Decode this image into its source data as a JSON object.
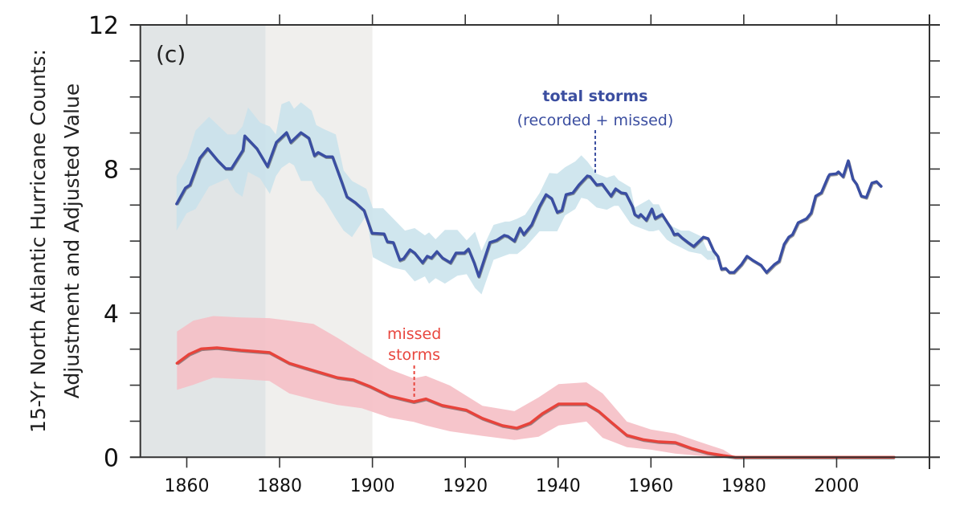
{
  "chart_data": {
    "type": "line",
    "panel_label": "(c)",
    "title": "",
    "xlabel": "",
    "ylabel_lines": [
      "15-Yr North Atlantic Hurricane Counts:",
      "Adjustment and Adjusted Value"
    ],
    "xlim": [
      1850,
      2020
    ],
    "ylim": [
      0,
      12
    ],
    "xticks": [
      1860,
      1880,
      1900,
      1920,
      1940,
      1960,
      1980,
      2000
    ],
    "xticks_minor": [
      2020
    ],
    "yticks": [
      0,
      4,
      8,
      12
    ],
    "yticks_minor": [
      1,
      2,
      3,
      5,
      6,
      7,
      9,
      10,
      11
    ],
    "grid": false,
    "shaded_periods": [
      {
        "name": "early-period",
        "x": [
          1850,
          1877
        ],
        "color": "#e1e5e6"
      },
      {
        "name": "late-period",
        "x": [
          1877,
          1900
        ],
        "color": "#f0efed"
      }
    ],
    "colors": {
      "total_line": "#3a4ea2",
      "total_band": "#c8e2eb",
      "missed_line": "#e8433b",
      "missed_band": "#f5bfc5",
      "axis": "#333333"
    },
    "annotations": [
      {
        "name": "total-storms-label",
        "lines": [
          "total storms",
          "(recorded + missed)"
        ],
        "x": 1948,
        "y": 7.8,
        "color": "#3b4ea0"
      },
      {
        "name": "missed-storms-label",
        "lines": [
          "missed",
          "storms"
        ],
        "x": 1909,
        "y": 1.55,
        "color": "#e8463e"
      }
    ],
    "series": [
      {
        "name": "total storms (recorded + missed)",
        "x": [
          1857.8,
          1859.7,
          1860.7,
          1862.8,
          1864.5,
          1866.7,
          1868.4,
          1869.6,
          1872.1,
          1872.5,
          1875.1,
          1877.4,
          1879.3,
          1881.5,
          1882.4,
          1884.6,
          1886.3,
          1887.5,
          1888.3,
          1890,
          1891.4,
          1893.4,
          1894.5,
          1896.3,
          1898.2,
          1899.9,
          1902.5,
          1903.2,
          1904.5,
          1905.9,
          1906.7,
          1908.1,
          1909.1,
          1910.8,
          1911.8,
          1912.7,
          1913.9,
          1915.1,
          1916.8,
          1918,
          1919.8,
          1920.7,
          1921.9,
          1922.9,
          1925.3,
          1926.7,
          1928.4,
          1929.2,
          1930.6,
          1931.8,
          1932.6,
          1934.3,
          1936,
          1937.4,
          1938.6,
          1939.8,
          1940.8,
          1941.7,
          1943.2,
          1944.5,
          1946.3,
          1946.9,
          1948.3,
          1949.5,
          1951.4,
          1952.4,
          1953.6,
          1954.6,
          1956,
          1956.5,
          1957.3,
          1957.8,
          1959,
          1960.2,
          1960.9,
          1962.4,
          1964.3,
          1965,
          1965.8,
          1966.7,
          1968,
          1969.2,
          1971.3,
          1972.3,
          1973.5,
          1974.4,
          1975.2,
          1976.1,
          1976.9,
          1977.9,
          1979.5,
          1980.7,
          1981.9,
          1983.7,
          1984.9,
          1986.6,
          1987.6,
          1988.7,
          1989.7,
          1990.5,
          1991.7,
          1993.5,
          1994.5,
          1995.5,
          1996.7,
          1998.2,
          1998.5,
          1999.9,
          2000.4,
          2001.4,
          2002.5,
          2003.5,
          2004.3,
          2005.3,
          2006.4,
          2007.6,
          2008.6,
          2009.6
        ],
        "y": [
          7.03,
          7.47,
          7.56,
          8.3,
          8.57,
          8.23,
          8.01,
          8.01,
          8.52,
          8.92,
          8.57,
          8.07,
          8.74,
          9.01,
          8.74,
          9.01,
          8.86,
          8.37,
          8.46,
          8.34,
          8.34,
          7.63,
          7.23,
          7.07,
          6.85,
          6.22,
          6.2,
          5.98,
          5.96,
          5.47,
          5.51,
          5.76,
          5.67,
          5.4,
          5.58,
          5.53,
          5.71,
          5.53,
          5.4,
          5.67,
          5.67,
          5.78,
          5.4,
          5.02,
          5.96,
          6.02,
          6.16,
          6.13,
          6.0,
          6.36,
          6.18,
          6.45,
          6.96,
          7.29,
          7.18,
          6.8,
          6.85,
          7.29,
          7.34,
          7.56,
          7.81,
          7.79,
          7.56,
          7.58,
          7.25,
          7.45,
          7.34,
          7.32,
          6.96,
          6.74,
          6.67,
          6.74,
          6.58,
          6.89,
          6.63,
          6.74,
          6.36,
          6.18,
          6.2,
          6.09,
          5.96,
          5.85,
          6.11,
          6.07,
          5.73,
          5.58,
          5.22,
          5.24,
          5.13,
          5.13,
          5.35,
          5.58,
          5.47,
          5.33,
          5.13,
          5.35,
          5.44,
          5.91,
          6.11,
          6.18,
          6.51,
          6.62,
          6.78,
          7.25,
          7.34,
          7.79,
          7.85,
          7.87,
          7.92,
          7.79,
          8.23,
          7.72,
          7.58,
          7.25,
          7.21,
          7.61,
          7.65,
          7.52
        ],
        "band_x": [
          1857.8,
          1860,
          1861.9,
          1864.8,
          1868.8,
          1870.5,
          1872,
          1873.2,
          1875.8,
          1877.9,
          1879.2,
          1880.4,
          1882.1,
          1883.1,
          1884.6,
          1886.9,
          1887.9,
          1889.5,
          1892.1,
          1893.8,
          1895.6,
          1898.7,
          1900.1,
          1902.3,
          1904.5,
          1907,
          1909.1,
          1911.3,
          1912.2,
          1913.6,
          1915.6,
          1918.3,
          1920.3,
          1922.1,
          1923.5,
          1926.1,
          1928.6,
          1929.5,
          1931.2,
          1932.9,
          1936,
          1938.1,
          1939.8,
          1941.5,
          1943.7,
          1945,
          1946.3,
          1948.3,
          1950.5,
          1952.1,
          1953,
          1955.6,
          1956.5,
          1959.6,
          1960.5,
          1961.7,
          1963.4,
          1964.7,
          1966.5,
          1968.2,
          1970.8,
          1972.2,
          1973.9
        ],
        "band_upper": [
          7.8,
          8.29,
          9.07,
          9.45,
          8.96,
          8.96,
          9.18,
          9.71,
          9.29,
          9.18,
          8.96,
          9.8,
          9.89,
          9.67,
          9.85,
          9.62,
          9.22,
          9.11,
          8.96,
          7.96,
          7.67,
          7.45,
          6.91,
          6.91,
          6.62,
          6.29,
          6.36,
          6.16,
          6.24,
          6.05,
          6.31,
          6.31,
          6.02,
          6.26,
          5.73,
          6.45,
          6.54,
          6.54,
          6.62,
          6.73,
          7.33,
          7.89,
          7.87,
          8.05,
          8.21,
          8.38,
          8.21,
          7.87,
          7.76,
          7.83,
          7.69,
          7.49,
          6.93,
          7.16,
          7.02,
          7.02,
          6.58,
          6.4,
          6.29,
          6.29,
          6.13,
          5.73,
          5.73
        ],
        "band_lower": [
          6.29,
          6.78,
          6.89,
          7.51,
          7.74,
          7.36,
          7.23,
          7.92,
          7.74,
          7.31,
          7.8,
          8.03,
          8.18,
          8.1,
          7.67,
          7.67,
          7.4,
          7.18,
          6.62,
          6.29,
          6.11,
          6.71,
          5.55,
          5.4,
          5.26,
          5.19,
          4.88,
          5.02,
          4.82,
          4.97,
          4.82,
          5.04,
          5.08,
          4.7,
          4.52,
          5.48,
          5.6,
          5.64,
          5.64,
          5.82,
          6.27,
          6.27,
          6.27,
          6.71,
          6.89,
          7.2,
          7.16,
          6.93,
          6.87,
          6.98,
          6.98,
          6.49,
          6.42,
          6.27,
          6.27,
          6.31,
          6.04,
          5.93,
          5.82,
          5.71,
          5.64,
          5.48,
          5.48
        ]
      },
      {
        "name": "missed storms",
        "x": [
          1857.9,
          1860.5,
          1863.1,
          1866.5,
          1871.7,
          1877.8,
          1882.1,
          1886.4,
          1892.5,
          1895.9,
          1899.4,
          1903.7,
          1908.9,
          1911.5,
          1915,
          1920.2,
          1923.7,
          1928,
          1931.1,
          1934,
          1936.6,
          1940.1,
          1946.1,
          1948.7,
          1951.3,
          1954.8,
          1958.3,
          1961.7,
          1965.2,
          1968.7,
          1972.2,
          1975.5,
          1978.2,
          1990,
          2000,
          2012.4
        ],
        "y": [
          2.61,
          2.86,
          3.01,
          3.04,
          2.97,
          2.91,
          2.61,
          2.44,
          2.21,
          2.15,
          1.97,
          1.7,
          1.54,
          1.62,
          1.44,
          1.31,
          1.08,
          0.88,
          0.81,
          0.95,
          1.21,
          1.48,
          1.48,
          1.28,
          0.99,
          0.61,
          0.49,
          0.43,
          0.41,
          0.25,
          0.12,
          0.05,
          0.0,
          0.0,
          0.0,
          0.0
        ],
        "band_x": [
          1857.9,
          1861.4,
          1865.7,
          1871.7,
          1877.8,
          1882.1,
          1887.3,
          1892.5,
          1897.7,
          1903.7,
          1908.9,
          1911.5,
          1916.7,
          1923.7,
          1930.6,
          1935.8,
          1940.1,
          1946.1,
          1949.6,
          1954.8,
          1960,
          1965.2,
          1970.4,
          1975.6,
          1978.2
        ],
        "band_upper": [
          3.49,
          3.79,
          3.92,
          3.88,
          3.86,
          3.79,
          3.7,
          3.31,
          2.89,
          2.44,
          2.19,
          2.26,
          1.99,
          1.43,
          1.28,
          1.66,
          2.03,
          2.08,
          1.77,
          0.99,
          0.77,
          0.66,
          0.43,
          0.21,
          0.0
        ],
        "band_lower": [
          1.87,
          2.01,
          2.21,
          2.17,
          2.12,
          1.77,
          1.6,
          1.45,
          1.36,
          1.1,
          0.98,
          0.88,
          0.72,
          0.59,
          0.48,
          0.57,
          0.88,
          0.99,
          0.54,
          0.28,
          0.21,
          0.1,
          0.04,
          0.0,
          0.0
        ]
      }
    ]
  }
}
